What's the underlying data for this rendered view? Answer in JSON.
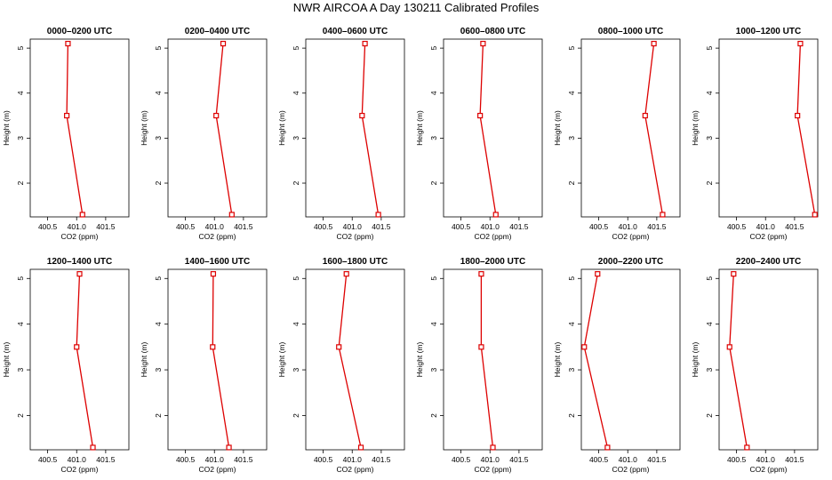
{
  "title": "NWR AIRCOA A  Day 130211  Calibrated Profiles",
  "colors": {
    "series": "#dd0000",
    "axis": "#000000"
  },
  "chart_data": [
    {
      "type": "line",
      "title": "0000–0200 UTC",
      "xlabel": "CO2 (ppm)",
      "ylabel": "Height (m)",
      "xlim": [
        400.2,
        401.9
      ],
      "ylim": [
        1.25,
        5.2
      ],
      "xticks": [
        400.5,
        401.0,
        401.5
      ],
      "yticks": [
        2,
        3,
        4,
        5
      ],
      "series": [
        {
          "heights": [
            5.1,
            3.5,
            1.3
          ],
          "values": [
            400.85,
            400.83,
            401.1
          ]
        }
      ]
    },
    {
      "type": "line",
      "title": "0200–0400 UTC",
      "xlabel": "CO2 (ppm)",
      "ylabel": "Height (m)",
      "xlim": [
        400.2,
        401.9
      ],
      "ylim": [
        1.25,
        5.2
      ],
      "xticks": [
        400.5,
        401.0,
        401.5
      ],
      "yticks": [
        2,
        3,
        4,
        5
      ],
      "series": [
        {
          "heights": [
            5.1,
            3.5,
            1.3
          ],
          "values": [
            401.15,
            401.03,
            401.3
          ]
        }
      ]
    },
    {
      "type": "line",
      "title": "0400–0600 UTC",
      "xlabel": "CO2 (ppm)",
      "ylabel": "Height (m)",
      "xlim": [
        400.2,
        401.9
      ],
      "ylim": [
        1.25,
        5.2
      ],
      "xticks": [
        400.5,
        401.0,
        401.5
      ],
      "yticks": [
        2,
        3,
        4,
        5
      ],
      "series": [
        {
          "heights": [
            5.1,
            3.5,
            1.3
          ],
          "values": [
            401.22,
            401.17,
            401.45
          ]
        }
      ]
    },
    {
      "type": "line",
      "title": "0600–0800 UTC",
      "xlabel": "CO2 (ppm)",
      "ylabel": "Height (m)",
      "xlim": [
        400.2,
        401.9
      ],
      "ylim": [
        1.25,
        5.2
      ],
      "xticks": [
        400.5,
        401.0,
        401.5
      ],
      "yticks": [
        2,
        3,
        4,
        5
      ],
      "series": [
        {
          "heights": [
            5.1,
            3.5,
            1.3
          ],
          "values": [
            400.88,
            400.83,
            401.1
          ]
        }
      ]
    },
    {
      "type": "line",
      "title": "0800–1000 UTC",
      "xlabel": "CO2 (ppm)",
      "ylabel": "Height (m)",
      "xlim": [
        400.2,
        401.9
      ],
      "ylim": [
        1.25,
        5.2
      ],
      "xticks": [
        400.5,
        401.0,
        401.5
      ],
      "yticks": [
        2,
        3,
        4,
        5
      ],
      "series": [
        {
          "heights": [
            5.1,
            3.5,
            1.3
          ],
          "values": [
            401.45,
            401.3,
            401.6
          ]
        }
      ]
    },
    {
      "type": "line",
      "title": "1000–1200 UTC",
      "xlabel": "CO2 (ppm)",
      "ylabel": "Height (m)",
      "xlim": [
        400.2,
        401.9
      ],
      "ylim": [
        1.25,
        5.2
      ],
      "xticks": [
        400.5,
        401.0,
        401.5
      ],
      "yticks": [
        2,
        3,
        4,
        5
      ],
      "series": [
        {
          "heights": [
            5.1,
            3.5,
            1.3
          ],
          "values": [
            401.6,
            401.55,
            401.85
          ]
        }
      ]
    },
    {
      "type": "line",
      "title": "1200–1400 UTC",
      "xlabel": "CO2 (ppm)",
      "ylabel": "Height (m)",
      "xlim": [
        400.2,
        401.9
      ],
      "ylim": [
        1.25,
        5.2
      ],
      "xticks": [
        400.5,
        401.0,
        401.5
      ],
      "yticks": [
        2,
        3,
        4,
        5
      ],
      "series": [
        {
          "heights": [
            5.1,
            3.5,
            1.3
          ],
          "values": [
            401.05,
            401.0,
            401.28
          ]
        }
      ]
    },
    {
      "type": "line",
      "title": "1400–1600 UTC",
      "xlabel": "CO2 (ppm)",
      "ylabel": "Height (m)",
      "xlim": [
        400.2,
        401.9
      ],
      "ylim": [
        1.25,
        5.2
      ],
      "xticks": [
        400.5,
        401.0,
        401.5
      ],
      "yticks": [
        2,
        3,
        4,
        5
      ],
      "series": [
        {
          "heights": [
            5.1,
            3.5,
            1.3
          ],
          "values": [
            400.98,
            400.97,
            401.25
          ]
        }
      ]
    },
    {
      "type": "line",
      "title": "1600–1800 UTC",
      "xlabel": "CO2 (ppm)",
      "ylabel": "Height (m)",
      "xlim": [
        400.2,
        401.9
      ],
      "ylim": [
        1.25,
        5.2
      ],
      "xticks": [
        400.5,
        401.0,
        401.5
      ],
      "yticks": [
        2,
        3,
        4,
        5
      ],
      "series": [
        {
          "heights": [
            5.1,
            3.5,
            1.3
          ],
          "values": [
            400.9,
            400.77,
            401.15
          ]
        }
      ]
    },
    {
      "type": "line",
      "title": "1800–2000 UTC",
      "xlabel": "CO2 (ppm)",
      "ylabel": "Height (m)",
      "xlim": [
        400.2,
        401.9
      ],
      "ylim": [
        1.25,
        5.2
      ],
      "xticks": [
        400.5,
        401.0,
        401.5
      ],
      "yticks": [
        2,
        3,
        4,
        5
      ],
      "series": [
        {
          "heights": [
            5.1,
            3.5,
            1.3
          ],
          "values": [
            400.85,
            400.85,
            401.05
          ]
        }
      ]
    },
    {
      "type": "line",
      "title": "2000–2200 UTC",
      "xlabel": "CO2 (ppm)",
      "ylabel": "Height (m)",
      "xlim": [
        400.2,
        401.9
      ],
      "ylim": [
        1.25,
        5.2
      ],
      "xticks": [
        400.5,
        401.0,
        401.5
      ],
      "yticks": [
        2,
        3,
        4,
        5
      ],
      "series": [
        {
          "heights": [
            5.1,
            3.5,
            1.3
          ],
          "values": [
            400.48,
            400.25,
            400.65
          ]
        }
      ]
    },
    {
      "type": "line",
      "title": "2200–2400 UTC",
      "xlabel": "CO2 (ppm)",
      "ylabel": "Height (m)",
      "xlim": [
        400.2,
        401.9
      ],
      "ylim": [
        1.25,
        5.2
      ],
      "xticks": [
        400.5,
        401.0,
        401.5
      ],
      "yticks": [
        2,
        3,
        4,
        5
      ],
      "series": [
        {
          "heights": [
            5.1,
            3.5,
            1.3
          ],
          "values": [
            400.45,
            400.38,
            400.68
          ]
        }
      ]
    }
  ]
}
